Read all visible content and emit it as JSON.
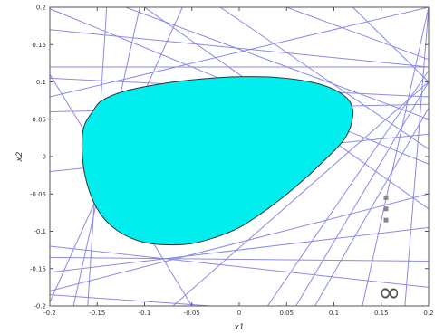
{
  "chart_data": {
    "type": "area",
    "title": "",
    "xlabel": "x1",
    "ylabel": "x2",
    "xlim": [
      -0.2,
      0.2
    ],
    "ylim": [
      -0.2,
      0.2
    ],
    "grid": false,
    "x_ticks": [
      "-0.2",
      "-0.15",
      "-0.1",
      "-0.05",
      "0",
      "0.05",
      "0.1",
      "0.15",
      "0.2"
    ],
    "y_ticks": [
      "0.2",
      "0.15",
      "0.1",
      "0.05",
      "0",
      "-0.05",
      "-0.1",
      "-0.15",
      "-0.2"
    ],
    "region": {
      "fill_color": "#00eeee",
      "edge_color": "#333333",
      "boundary": [
        [
          -0.155,
          0.06
        ],
        [
          -0.145,
          0.075
        ],
        [
          -0.12,
          0.088
        ],
        [
          -0.08,
          0.098
        ],
        [
          -0.04,
          0.104
        ],
        [
          0.0,
          0.107
        ],
        [
          0.04,
          0.106
        ],
        [
          0.075,
          0.1
        ],
        [
          0.1,
          0.09
        ],
        [
          0.116,
          0.075
        ],
        [
          0.12,
          0.055
        ],
        [
          0.112,
          0.025
        ],
        [
          0.09,
          -0.005
        ],
        [
          0.06,
          -0.04
        ],
        [
          0.03,
          -0.07
        ],
        [
          0.0,
          -0.095
        ],
        [
          -0.03,
          -0.11
        ],
        [
          -0.06,
          -0.118
        ],
        [
          -0.1,
          -0.115
        ],
        [
          -0.13,
          -0.098
        ],
        [
          -0.15,
          -0.07
        ],
        [
          -0.162,
          -0.03
        ],
        [
          -0.166,
          0.01
        ],
        [
          -0.164,
          0.04
        ]
      ]
    },
    "lines": {
      "color": "#8a8ae6",
      "segments": [
        [
          [
            -0.2,
            0.198
          ],
          [
            0.2,
            -0.01
          ]
        ],
        [
          [
            -0.2,
            0.17
          ],
          [
            0.2,
            0.12
          ]
        ],
        [
          [
            -0.2,
            0.12
          ],
          [
            0.2,
            0.12
          ]
        ],
        [
          [
            -0.2,
            0.08
          ],
          [
            0.2,
            0.2
          ]
        ],
        [
          [
            -0.2,
            0.105
          ],
          [
            0.2,
            0.08
          ]
        ],
        [
          [
            -0.2,
            0.06
          ],
          [
            0.2,
            0.07
          ]
        ],
        [
          [
            -0.2,
            -0.02
          ],
          [
            0.2,
            0.03
          ]
        ],
        [
          [
            -0.2,
            -0.195
          ],
          [
            -0.06,
            0.2
          ]
        ],
        [
          [
            -0.16,
            -0.2
          ],
          [
            -0.14,
            0.2
          ]
        ],
        [
          [
            -0.175,
            -0.2
          ],
          [
            -0.105,
            0.2
          ]
        ],
        [
          [
            -0.2,
            0.11
          ],
          [
            -0.05,
            -0.2
          ]
        ],
        [
          [
            -0.2,
            -0.185
          ],
          [
            -0.03,
            -0.2
          ]
        ],
        [
          [
            -0.2,
            -0.135
          ],
          [
            0.2,
            -0.14
          ]
        ],
        [
          [
            -0.2,
            -0.155
          ],
          [
            0.2,
            -0.095
          ]
        ],
        [
          [
            -0.2,
            -0.18
          ],
          [
            0.2,
            -0.05
          ]
        ],
        [
          [
            -0.2,
            -0.12
          ],
          [
            0.2,
            -0.175
          ]
        ],
        [
          [
            -0.07,
            -0.2
          ],
          [
            0.2,
            0.1
          ]
        ],
        [
          [
            0.03,
            -0.2
          ],
          [
            0.2,
            0.115
          ]
        ],
        [
          [
            0.08,
            -0.2
          ],
          [
            0.2,
            0.065
          ]
        ],
        [
          [
            0.13,
            -0.2
          ],
          [
            0.2,
            0.2
          ]
        ],
        [
          [
            0.06,
            -0.2
          ],
          [
            0.2,
            0.1
          ]
        ],
        [
          [
            -0.02,
            0.2
          ],
          [
            0.2,
            0.01
          ]
        ],
        [
          [
            0.05,
            0.2
          ],
          [
            0.2,
            0.13
          ]
        ],
        [
          [
            0.12,
            0.2
          ],
          [
            0.2,
            0.1
          ]
        ],
        [
          [
            -0.1,
            0.2
          ],
          [
            0.2,
            -0.07
          ]
        ],
        [
          [
            -0.12,
            0.2
          ],
          [
            0.2,
            0.05
          ]
        ],
        [
          [
            0.175,
            -0.2
          ],
          [
            0.2,
            0.2
          ]
        ]
      ]
    },
    "annotations": {
      "dots": [
        [
          0.155,
          -0.055
        ],
        [
          0.155,
          -0.07
        ],
        [
          0.155,
          -0.085
        ]
      ],
      "dots_color": "#888888",
      "symbol": "∞"
    }
  }
}
